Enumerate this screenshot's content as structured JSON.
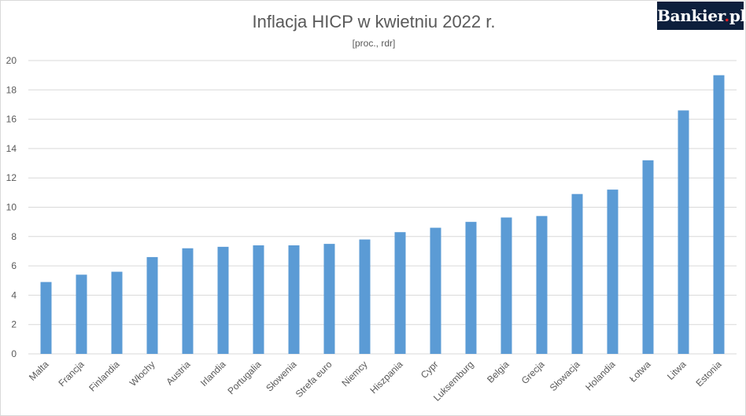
{
  "brand": {
    "logo_prefix": "Bankier",
    "logo_dot": ".",
    "logo_suffix": "pl"
  },
  "chart_data": {
    "type": "bar",
    "title": "Inflacja HICP w kwietniu 2022 r.",
    "subtitle": "[proc., rdr]",
    "xlabel": "",
    "ylabel": "",
    "ylim": [
      0,
      20
    ],
    "yticks": [
      0,
      2,
      4,
      6,
      8,
      10,
      12,
      14,
      16,
      18,
      20
    ],
    "grid": true,
    "bar_color": "#5b9bd5",
    "categories": [
      "Malta",
      "Francja",
      "Finlandia",
      "Włochy",
      "Austria",
      "Irlandia",
      "Portugalia",
      "Słowenia",
      "Strefa euro",
      "Niemcy",
      "Hiszpania",
      "Cypr",
      "Luksemburg",
      "Belgia",
      "Grecja",
      "Słowacja",
      "Holandia",
      "Łotwa",
      "Litwa",
      "Estonia"
    ],
    "values": [
      4.9,
      5.4,
      5.6,
      6.6,
      7.2,
      7.3,
      7.4,
      7.4,
      7.5,
      7.8,
      8.3,
      8.6,
      9.0,
      9.3,
      9.4,
      10.9,
      11.2,
      13.2,
      16.6,
      19.0
    ]
  }
}
